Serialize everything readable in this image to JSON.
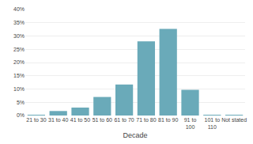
{
  "chart_data": {
    "type": "bar",
    "categories": [
      "21 to 30",
      "31 to 40",
      "41 to 50",
      "51 to 60",
      "61 to 70",
      "71 to 80",
      "81 to 90",
      "91 to\n100",
      "101 to\n110",
      "Not stated"
    ],
    "values": [
      0.3,
      1.7,
      3.0,
      7.0,
      11.7,
      28.0,
      32.7,
      9.7,
      0.1,
      0.3
    ],
    "color": "#6aaab9",
    "xlabel": "Decade",
    "ylim": [
      0,
      40
    ],
    "yticks": [
      {
        "value": 0,
        "label": "0%"
      },
      {
        "value": 5,
        "label": "5%"
      },
      {
        "value": 10,
        "label": "10%"
      },
      {
        "value": 15,
        "label": "15%"
      },
      {
        "value": 20,
        "label": "20%"
      },
      {
        "value": 25,
        "label": "25%"
      },
      {
        "value": 30,
        "label": "30%"
      },
      {
        "value": 35,
        "label": "35%"
      },
      {
        "value": 40,
        "label": "40%"
      }
    ],
    "grid": true
  }
}
